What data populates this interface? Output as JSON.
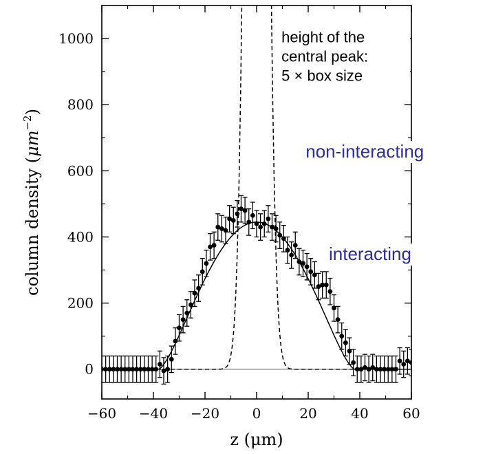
{
  "chart_data": {
    "type": "scatter",
    "xlabel": "z  (μm)",
    "ylabel_parts": {
      "text": "column density  (",
      "unit": "μm",
      "exponent": "−2",
      "close": ")"
    },
    "xlim": [
      -60,
      60
    ],
    "ylim": [
      -90,
      1100
    ],
    "xticks": [
      -60,
      -40,
      -20,
      0,
      20,
      40,
      60
    ],
    "xtick_labels": [
      "−60",
      "−40",
      "−20",
      "0",
      "20",
      "40",
      "60"
    ],
    "yticks": [
      0,
      200,
      400,
      600,
      800,
      1000
    ],
    "ytick_labels": [
      "0",
      "200",
      "400",
      "600",
      "800",
      "1000"
    ],
    "grid": false,
    "annotation": {
      "lines": [
        "height of the",
        "central peak:",
        "5 × box size"
      ],
      "x": 7.5,
      "y": 1030
    },
    "series_labels": [
      {
        "text": "non-interacting",
        "x": 19,
        "y": 640
      },
      {
        "text": "interacting",
        "x": 28,
        "y": 330
      }
    ],
    "series": [
      {
        "style": "points-with-error-bars",
        "error": 40,
        "points": [
          [
            -60,
            0
          ],
          [
            -58.5,
            0
          ],
          [
            -57,
            0
          ],
          [
            -55.5,
            0
          ],
          [
            -54,
            0
          ],
          [
            -52.5,
            0
          ],
          [
            -51,
            0
          ],
          [
            -49.5,
            0
          ],
          [
            -48,
            0
          ],
          [
            -46.5,
            0
          ],
          [
            -45,
            0
          ],
          [
            -43.5,
            0
          ],
          [
            -42,
            0
          ],
          [
            -40.5,
            0
          ],
          [
            -39,
            0
          ],
          [
            -37.5,
            15
          ],
          [
            -36,
            -5
          ],
          [
            -34.5,
            0
          ],
          [
            -33,
            30
          ],
          [
            -31.5,
            85
          ],
          [
            -30,
            125
          ],
          [
            -28.5,
            150
          ],
          [
            -27,
            170
          ],
          [
            -25.5,
            195
          ],
          [
            -24,
            230
          ],
          [
            -22.5,
            245
          ],
          [
            -21,
            295
          ],
          [
            -19.5,
            320
          ],
          [
            -18,
            370
          ],
          [
            -16.5,
            375
          ],
          [
            -15,
            430
          ],
          [
            -13.5,
            425
          ],
          [
            -12,
            420
          ],
          [
            -10.5,
            455
          ],
          [
            -9,
            450
          ],
          [
            -7.5,
            470
          ],
          [
            -6,
            485
          ],
          [
            -4.5,
            480
          ],
          [
            -3,
            445
          ],
          [
            -1.5,
            465
          ],
          [
            0,
            440
          ],
          [
            1.5,
            430
          ],
          [
            3,
            440
          ],
          [
            4.5,
            455
          ],
          [
            6,
            430
          ],
          [
            7.5,
            425
          ],
          [
            9,
            405
          ],
          [
            10.5,
            395
          ],
          [
            12,
            360
          ],
          [
            13.5,
            345
          ],
          [
            15,
            375
          ],
          [
            16.5,
            325
          ],
          [
            18,
            320
          ],
          [
            19.5,
            310
          ],
          [
            21,
            295
          ],
          [
            22.5,
            285
          ],
          [
            24,
            250
          ],
          [
            25.5,
            255
          ],
          [
            27,
            255
          ],
          [
            28.5,
            235
          ],
          [
            30,
            185
          ],
          [
            31.5,
            150
          ],
          [
            33,
            100
          ],
          [
            34.5,
            80
          ],
          [
            36,
            55
          ],
          [
            37.5,
            20
          ],
          [
            39,
            0
          ],
          [
            40.5,
            0
          ],
          [
            42,
            5
          ],
          [
            43.5,
            0
          ],
          [
            45,
            5
          ],
          [
            46.5,
            0
          ],
          [
            48,
            0
          ],
          [
            49.5,
            0
          ],
          [
            51,
            0
          ],
          [
            52.5,
            0
          ],
          [
            54,
            0
          ],
          [
            55.5,
            25
          ],
          [
            57,
            15
          ],
          [
            58.5,
            25
          ],
          [
            60,
            20
          ]
        ]
      },
      {
        "style": "solid-line",
        "model": "thomas-fermi",
        "peak": 445,
        "half_width": 38
      },
      {
        "style": "dashed-line",
        "model": "gaussian",
        "peak": 5500,
        "sigma": 3.2
      },
      {
        "style": "thin-baseline",
        "y": 0
      }
    ]
  }
}
